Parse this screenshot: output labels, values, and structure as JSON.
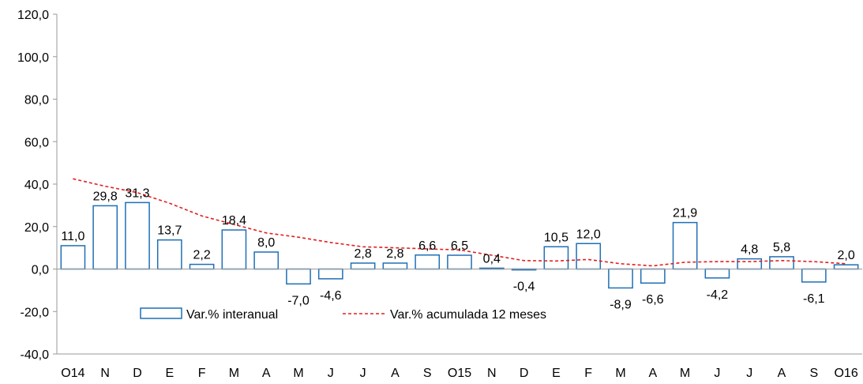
{
  "chart_data": {
    "type": "bar",
    "categories": [
      "O14",
      "N",
      "D",
      "E",
      "F",
      "M",
      "A",
      "M",
      "J",
      "J",
      "A",
      "S",
      "O15",
      "N",
      "D",
      "E",
      "F",
      "M",
      "A",
      "M",
      "J",
      "J",
      "A",
      "S",
      "O16"
    ],
    "series": [
      {
        "name": "Var.% interanual",
        "type": "bar",
        "values": [
          11.0,
          29.8,
          31.3,
          13.7,
          2.2,
          18.4,
          8.0,
          -7.0,
          -4.6,
          2.8,
          2.8,
          6.6,
          6.5,
          0.4,
          -0.4,
          10.5,
          12.0,
          -8.9,
          -6.6,
          21.9,
          -4.2,
          4.8,
          5.8,
          -6.1,
          2.0
        ],
        "labels": [
          "11,0",
          "29,8",
          "31,3",
          "13,7",
          "2,2",
          "18,4",
          "8,0",
          "-7,0",
          "-4,6",
          "2,8",
          "2,8",
          "6,6",
          "6,5",
          "0,4",
          "-0,4",
          "10,5",
          "12,0",
          "-8,9",
          "-6,6",
          "21,9",
          "-4,2",
          "4,8",
          "5,8",
          "-6,1",
          "2,0"
        ],
        "color": "#1f6fb5"
      },
      {
        "name": "Var.% acumulada 12 meses",
        "type": "line",
        "values": [
          42.5,
          39.0,
          36.0,
          31.0,
          25.0,
          21.0,
          17.0,
          15.0,
          12.5,
          10.5,
          10.0,
          9.5,
          9.0,
          6.5,
          4.0,
          3.8,
          4.5,
          2.5,
          1.5,
          3.2,
          3.5,
          3.5,
          4.0,
          3.5,
          2.5
        ],
        "color": "#e02020"
      }
    ],
    "yticks": [
      "120,0",
      "100,0",
      "80,0",
      "60,0",
      "40,0",
      "20,0",
      "0,0",
      "-20,0",
      "-40,0"
    ],
    "ylim": [
      -40,
      120
    ],
    "title": "",
    "xlabel": "",
    "ylabel": "",
    "legend": {
      "placement": "bottom-inside",
      "bar_entry": "Var.% interanual",
      "line_entry": "Var.% acumulada 12 meses"
    },
    "grid": false
  }
}
